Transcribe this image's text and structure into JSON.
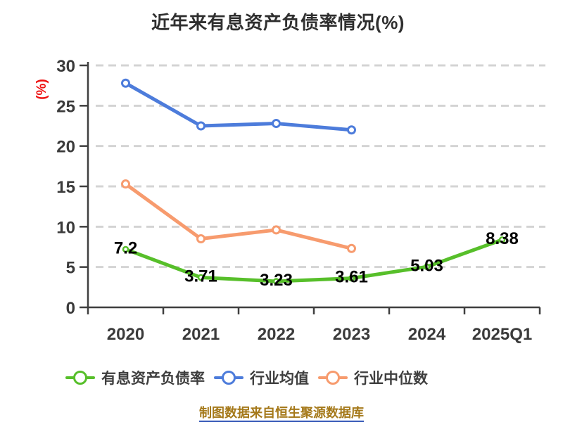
{
  "title": "近年来有息资产负债率情况(%)",
  "footer_source": "制图数据来自恒生聚源数据库",
  "chart_data": {
    "type": "line",
    "title": "近年来有息资产负债率情况(%)",
    "ylabel": "(%)",
    "categories": [
      "2020",
      "2021",
      "2022",
      "2023",
      "2024",
      "2025Q1"
    ],
    "series": [
      {
        "name": "有息资产负债率",
        "color": "#57bf2a",
        "values": [
          7.2,
          3.71,
          3.23,
          3.61,
          5.03,
          8.38
        ],
        "point_labels": [
          "7.2",
          "3.71",
          "3.23",
          "3.61",
          "5.03",
          "8.38"
        ]
      },
      {
        "name": "行业均值",
        "color": "#4d7cdb",
        "values": [
          27.8,
          22.5,
          22.8,
          22.0
        ]
      },
      {
        "name": "行业中位数",
        "color": "#f79b6e",
        "values": [
          15.3,
          8.5,
          9.6,
          7.3
        ]
      }
    ],
    "ylim": [
      0,
      30
    ],
    "yticks": [
      0,
      5,
      10,
      15,
      20,
      25,
      30
    ],
    "grid": "horizontal-dashed",
    "legend_position": "bottom",
    "marker": "circle-white-fill"
  },
  "colors": {
    "background": "#ffffff",
    "title_text": "#2f2f2f",
    "axis": "#3f3f3f",
    "tick_label": "#3b3b3b",
    "gridline": "#d4d4d4",
    "ylabel_red": "#ee1111",
    "value_label": "#000000",
    "legend_text": "#3f3f3f",
    "footer_text": "#a5791a",
    "footer_underline": "#2f54b5"
  }
}
